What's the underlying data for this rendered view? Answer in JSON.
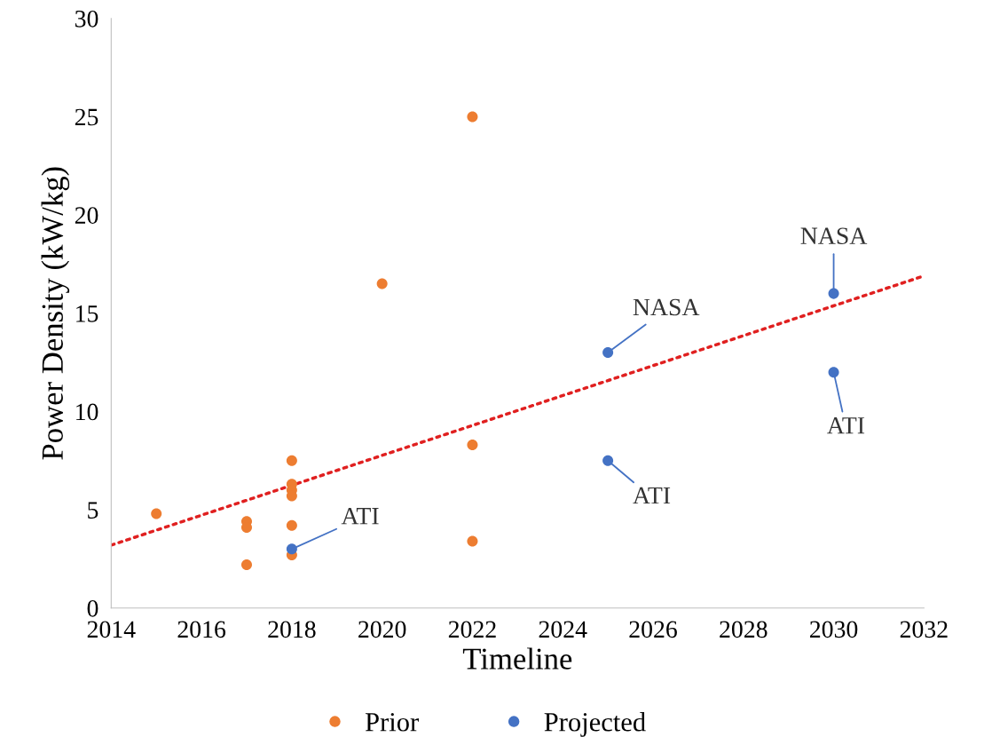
{
  "chart_data": {
    "type": "scatter",
    "xlabel": "Timeline",
    "ylabel": "Power Density (kW/kg)",
    "xlim": [
      2014,
      2032
    ],
    "xticks": [
      2014,
      2016,
      2018,
      2020,
      2022,
      2024,
      2026,
      2028,
      2030,
      2032
    ],
    "ylim": [
      0,
      30
    ],
    "yticks": [
      0,
      5,
      10,
      15,
      20,
      25,
      30
    ],
    "grid": false,
    "legend": "bottom",
    "marker": "circle",
    "series": [
      {
        "name": "Prior",
        "color": "#ed7d31",
        "x": [
          2015,
          2017,
          2017,
          2017,
          2018,
          2018,
          2018,
          2018,
          2018,
          2018,
          2020,
          2022,
          2022,
          2022
        ],
        "values": [
          4.8,
          4.4,
          4.1,
          2.2,
          7.5,
          6.3,
          6.0,
          5.7,
          4.2,
          2.7,
          16.5,
          25,
          8.3,
          3.4
        ]
      },
      {
        "name": "Projected",
        "color": "#4472c4",
        "x": [
          2018,
          2025,
          2025,
          2030,
          2030
        ],
        "values": [
          3.0,
          13.0,
          7.5,
          16.0,
          12.0
        ]
      },
      {
        "type": "line",
        "color": "#e02020",
        "line_style": "dotted",
        "marker": "none",
        "x": [
          2014,
          2032
        ],
        "values": [
          3.2,
          16.9
        ]
      }
    ],
    "annotations": [
      {
        "text": "ATI",
        "x": 2018,
        "y": 3.0
      },
      {
        "text": "NASA",
        "x": 2025,
        "y": 13.0
      },
      {
        "text": "ATI",
        "x": 2025,
        "y": 7.5
      },
      {
        "text": "NASA",
        "x": 2030,
        "y": 16.0
      },
      {
        "text": "ATI",
        "x": 2030,
        "y": 12.0
      }
    ]
  }
}
